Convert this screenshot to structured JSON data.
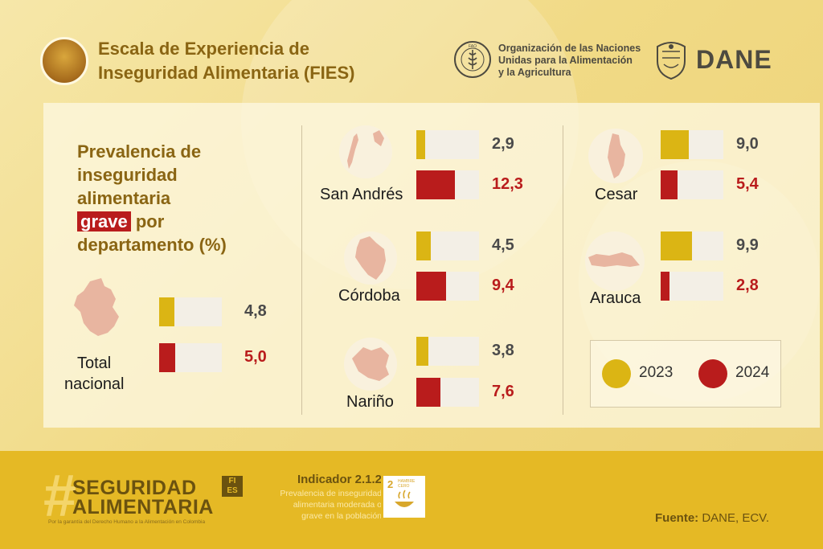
{
  "header": {
    "title_line1": "Escala de Experiencia de",
    "title_line2": "Inseguridad Alimentaria (FIES)",
    "fao_line1": "Organización de las Naciones",
    "fao_line2": "Unidas para la Alimentación",
    "fao_line3": "y la Agricultura",
    "dane": "DANE",
    "fao_logo_text": "FAO"
  },
  "subtitle": {
    "line1": "Prevalencia de",
    "line2": "inseguridad",
    "line3": "alimentaria",
    "highlight": "grave",
    "line4_rest": " por",
    "line5": "departamento (%)"
  },
  "colors": {
    "y2023": "#dbb514",
    "y2024": "#b91c1c",
    "map": "#e8b5a0"
  },
  "chart_data": {
    "type": "bar",
    "title": "Prevalencia de inseguridad alimentaria grave por departamento (%)",
    "categories": [
      "Total nacional",
      "San Andrés",
      "Córdoba",
      "Nariño",
      "Cesar",
      "Arauca"
    ],
    "series": [
      {
        "name": "2023",
        "values": [
          4.8,
          2.9,
          4.5,
          3.8,
          9.0,
          9.9
        ]
      },
      {
        "name": "2024",
        "values": [
          5.0,
          12.3,
          9.4,
          7.6,
          5.4,
          2.8
        ]
      }
    ],
    "value_labels": {
      "2023": [
        "4,8",
        "2,9",
        "4,5",
        "3,8",
        "9,0",
        "9,9"
      ],
      "2024": [
        "5,0",
        "12,3",
        "9,4",
        "7,6",
        "5,4",
        "2,8"
      ]
    },
    "ylim": [
      0,
      12.3
    ],
    "legend": "bottom-right"
  },
  "departments": {
    "total_line1": "Total",
    "total_line2": "nacional",
    "san_andres": "San Andrés",
    "cordoba": "Córdoba",
    "narino": "Nariño",
    "cesar": "Cesar",
    "arauca": "Arauca"
  },
  "legend": {
    "label_2023": "2023",
    "label_2024": "2024"
  },
  "footer": {
    "hash": "#",
    "brand_line1": "SEGURIDAD",
    "brand_line2": "ALIMENTARIA",
    "badge_line1": "FI",
    "badge_line2": "ES",
    "tagline": "Por la garantía del Derecho Humano a la Alimentación en Colombia",
    "indicator_title": "Indicador 2.1.2",
    "indicator_desc_line1": "Prevalencia de inseguridad",
    "indicator_desc_line2": "alimentaria moderada o",
    "indicator_desc_line3": "grave en la población",
    "sdg_number": "2",
    "sdg_label": "HAMBRE CERO",
    "source_label": "Fuente:",
    "source_value": " DANE, ECV."
  }
}
